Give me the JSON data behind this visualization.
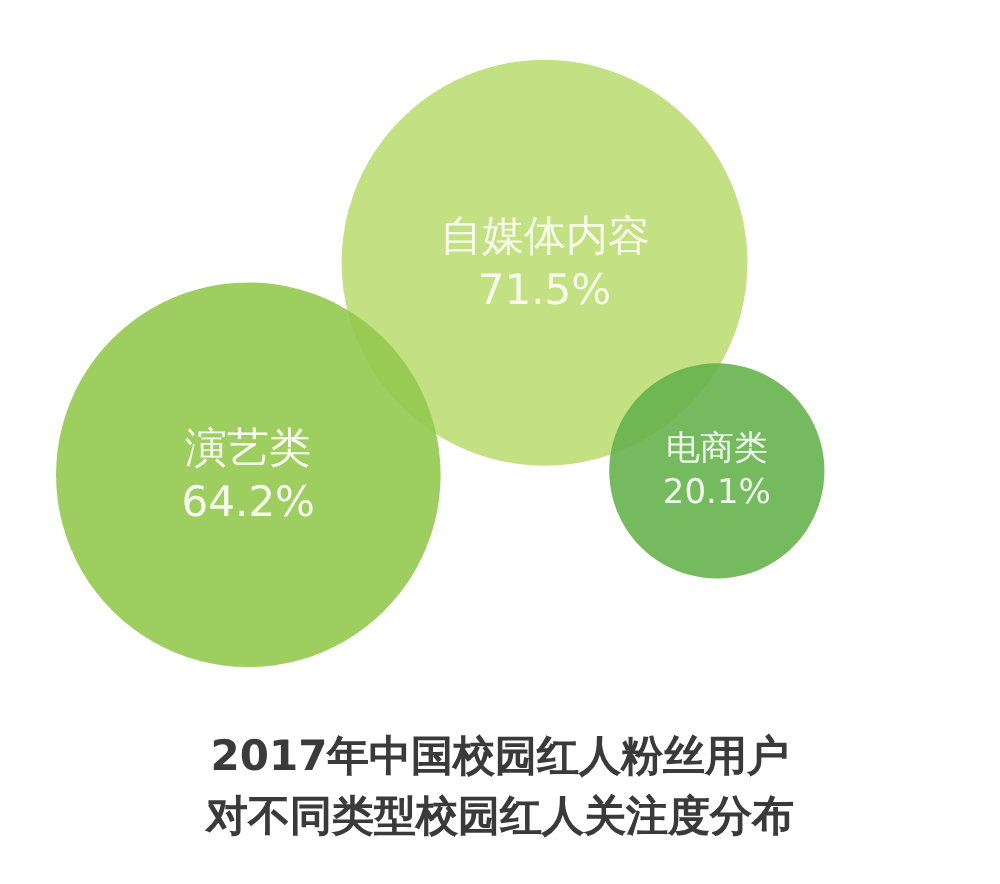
{
  "chart_data": {
    "type": "other",
    "title": "2017年中国校园红人粉丝用户对不同类型校园红人关注度分布",
    "categories": [
      "自媒体内容",
      "演艺类",
      "电商类"
    ],
    "values": [
      71.5,
      64.2,
      20.1
    ],
    "value_labels": [
      "71.5%",
      "64.2%",
      "20.1%"
    ],
    "colors": [
      "#b9da6c",
      "#95c94f",
      "#66b24c"
    ]
  }
}
